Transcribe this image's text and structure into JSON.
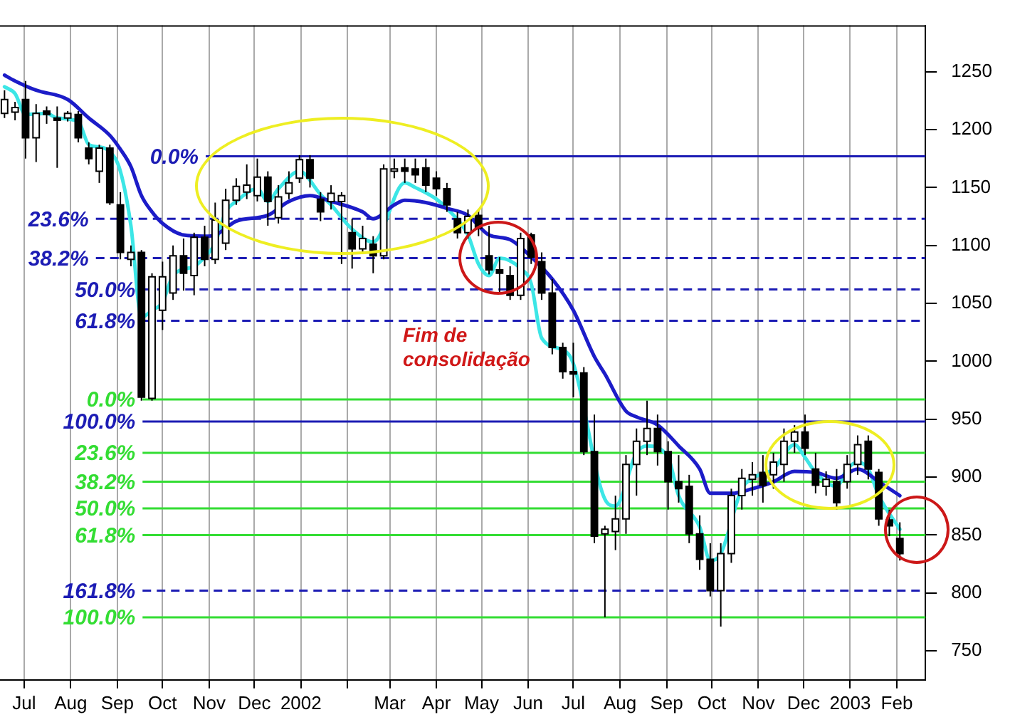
{
  "chart_data": {
    "type": "candlestick",
    "x": [
      "2001-06-18",
      "2001-06-25",
      "2001-07-02",
      "2001-07-09",
      "2001-07-16",
      "2001-07-23",
      "2001-07-30",
      "2001-08-06",
      "2001-08-13",
      "2001-08-20",
      "2001-08-27",
      "2001-09-03",
      "2001-09-10",
      "2001-09-17",
      "2001-09-24",
      "2001-10-01",
      "2001-10-08",
      "2001-10-15",
      "2001-10-22",
      "2001-10-29",
      "2001-11-05",
      "2001-11-12",
      "2001-11-19",
      "2001-11-26",
      "2001-12-03",
      "2001-12-10",
      "2001-12-17",
      "2001-12-24",
      "2001-12-31",
      "2002-01-07",
      "2002-01-14",
      "2002-01-21",
      "2002-01-28",
      "2002-02-04",
      "2002-02-11",
      "2002-02-18",
      "2002-02-25",
      "2002-03-04",
      "2002-03-11",
      "2002-03-18",
      "2002-03-25",
      "2002-04-01",
      "2002-04-08",
      "2002-04-15",
      "2002-04-22",
      "2002-04-29",
      "2002-05-06",
      "2002-05-13",
      "2002-05-20",
      "2002-05-27",
      "2002-06-03",
      "2002-06-10",
      "2002-06-17",
      "2002-06-24",
      "2002-07-01",
      "2002-07-08",
      "2002-07-15",
      "2002-07-22",
      "2002-07-29",
      "2002-08-05",
      "2002-08-12",
      "2002-08-19",
      "2002-08-26",
      "2002-09-02",
      "2002-09-09",
      "2002-09-16",
      "2002-09-23",
      "2002-09-30",
      "2002-10-07",
      "2002-10-14",
      "2002-10-21",
      "2002-10-28",
      "2002-11-04",
      "2002-11-11",
      "2002-11-18",
      "2002-11-25",
      "2002-12-02",
      "2002-12-09",
      "2002-12-16",
      "2002-12-23",
      "2002-12-30",
      "2003-01-06",
      "2003-01-13",
      "2003-01-20",
      "2003-01-27",
      "2003-02-03"
    ],
    "ohlc": [
      [
        1214,
        1234,
        1210,
        1226
      ],
      [
        1215,
        1224,
        1208,
        1219
      ],
      [
        1226,
        1242,
        1175,
        1193
      ],
      [
        1193,
        1222,
        1172,
        1214
      ],
      [
        1216,
        1220,
        1205,
        1213
      ],
      [
        1210,
        1220,
        1167,
        1208
      ],
      [
        1210,
        1216,
        1207,
        1214
      ],
      [
        1213,
        1216,
        1189,
        1193
      ],
      [
        1184,
        1189,
        1170,
        1175
      ],
      [
        1164,
        1187,
        1154,
        1184
      ],
      [
        1184,
        1187,
        1135,
        1137
      ],
      [
        1135,
        1146,
        1088,
        1094
      ],
      [
        1088,
        1100,
        1082,
        1094
      ],
      [
        1094,
        1096,
        966,
        969
      ],
      [
        968,
        1076,
        966,
        1073
      ],
      [
        1044,
        1086,
        1027,
        1073
      ],
      [
        1059,
        1100,
        1053,
        1091
      ],
      [
        1091,
        1106,
        1061,
        1076
      ],
      [
        1074,
        1111,
        1057,
        1107
      ],
      [
        1107,
        1117,
        1082,
        1088
      ],
      [
        1088,
        1137,
        1084,
        1122
      ],
      [
        1102,
        1149,
        1096,
        1139
      ],
      [
        1139,
        1158,
        1135,
        1151
      ],
      [
        1146,
        1170,
        1140,
        1152
      ],
      [
        1143,
        1175,
        1138,
        1159
      ],
      [
        1159,
        1164,
        1117,
        1138
      ],
      [
        1124,
        1152,
        1119,
        1142
      ],
      [
        1145,
        1164,
        1140,
        1154
      ],
      [
        1158,
        1178,
        1154,
        1174
      ],
      [
        1174,
        1178,
        1150,
        1158
      ],
      [
        1140,
        1146,
        1121,
        1129
      ],
      [
        1138,
        1152,
        1131,
        1145
      ],
      [
        1138,
        1146,
        1084,
        1143
      ],
      [
        1111,
        1123,
        1080,
        1097
      ],
      [
        1097,
        1117,
        1094,
        1106
      ],
      [
        1101,
        1108,
        1076,
        1091
      ],
      [
        1091,
        1170,
        1088,
        1166
      ],
      [
        1164,
        1175,
        1158,
        1166
      ],
      [
        1167,
        1175,
        1154,
        1164
      ],
      [
        1166,
        1175,
        1154,
        1161
      ],
      [
        1167,
        1175,
        1146,
        1152
      ],
      [
        1158,
        1164,
        1143,
        1149
      ],
      [
        1149,
        1154,
        1129,
        1135
      ],
      [
        1123,
        1129,
        1106,
        1111
      ],
      [
        1111,
        1131,
        1106,
        1125
      ],
      [
        1126,
        1131,
        1108,
        1115
      ],
      [
        1091,
        1117,
        1075,
        1079
      ],
      [
        1079,
        1090,
        1059,
        1076
      ],
      [
        1074,
        1082,
        1053,
        1057
      ],
      [
        1057,
        1111,
        1053,
        1106
      ],
      [
        1109,
        1111,
        1084,
        1090
      ],
      [
        1086,
        1094,
        1053,
        1059
      ],
      [
        1059,
        1071,
        1006,
        1012
      ],
      [
        1012,
        1016,
        985,
        991
      ],
      [
        991,
        1016,
        969,
        989
      ],
      [
        990,
        995,
        919,
        922
      ],
      [
        922,
        954,
        843,
        849
      ],
      [
        851,
        858,
        779,
        855
      ],
      [
        853,
        884,
        837,
        864
      ],
      [
        864,
        919,
        851,
        911
      ],
      [
        911,
        942,
        884,
        931
      ],
      [
        931,
        966,
        919,
        942
      ],
      [
        942,
        954,
        910,
        922
      ],
      [
        922,
        931,
        872,
        896
      ],
      [
        896,
        919,
        878,
        890
      ],
      [
        892,
        902,
        843,
        851
      ],
      [
        851,
        867,
        820,
        829
      ],
      [
        829,
        843,
        797,
        802
      ],
      [
        802,
        843,
        771,
        834
      ],
      [
        834,
        890,
        826,
        884
      ],
      [
        884,
        907,
        872,
        899
      ],
      [
        898,
        913,
        884,
        902
      ],
      [
        904,
        919,
        878,
        893
      ],
      [
        902,
        921,
        890,
        913
      ],
      [
        911,
        942,
        896,
        931
      ],
      [
        931,
        945,
        921,
        939
      ],
      [
        939,
        954,
        919,
        925
      ],
      [
        907,
        921,
        886,
        893
      ],
      [
        892,
        905,
        884,
        898
      ],
      [
        896,
        907,
        872,
        878
      ],
      [
        896,
        919,
        890,
        911
      ],
      [
        911,
        936,
        902,
        928
      ],
      [
        931,
        936,
        898,
        907
      ],
      [
        904,
        907,
        858,
        864
      ],
      [
        863,
        872,
        849,
        858
      ],
      [
        847,
        861,
        828,
        834
      ]
    ],
    "series": [
      {
        "type": "line",
        "color": "#1c1cc8",
        "x": [
          "2001-06-18",
          "2001-06-25",
          "2001-07-09",
          "2001-07-30",
          "2001-08-13",
          "2001-08-27",
          "2001-09-03",
          "2001-09-10",
          "2001-09-17",
          "2001-09-24",
          "2001-10-01",
          "2001-10-15",
          "2001-10-29",
          "2001-11-05",
          "2001-11-19",
          "2001-12-10",
          "2001-12-24",
          "2002-01-07",
          "2002-01-21",
          "2002-02-11",
          "2002-02-18",
          "2002-03-04",
          "2002-03-11",
          "2002-03-25",
          "2002-04-08",
          "2002-04-22",
          "2002-04-29",
          "2002-05-06",
          "2002-05-20",
          "2002-06-03",
          "2002-06-17",
          "2002-07-01",
          "2002-07-15",
          "2002-07-22",
          "2002-08-05",
          "2002-08-12",
          "2002-08-26",
          "2002-09-09",
          "2002-09-23",
          "2002-09-30",
          "2002-10-14",
          "2002-10-28",
          "2002-11-11",
          "2002-11-25",
          "2002-12-09",
          "2002-12-23",
          "2003-01-06",
          "2003-01-20",
          "2003-02-03"
        ],
        "values": [
          1247,
          1242,
          1234,
          1226,
          1210,
          1195,
          1183,
          1168,
          1143,
          1129,
          1119,
          1109,
          1108,
          1109,
          1121,
          1126,
          1138,
          1143,
          1138,
          1129,
          1123,
          1135,
          1139,
          1137,
          1132,
          1126,
          1117,
          1109,
          1105,
          1090,
          1071,
          1044,
          1004,
          989,
          957,
          952,
          945,
          927,
          907,
          886,
          886,
          890,
          896,
          905,
          904,
          899,
          907,
          896,
          884
        ]
      },
      {
        "type": "line",
        "color": "#3ce6e6",
        "x": [
          "2001-06-18",
          "2001-06-25",
          "2001-07-02",
          "2001-07-16",
          "2001-07-23",
          "2001-08-06",
          "2001-08-13",
          "2001-08-20",
          "2001-08-27",
          "2001-09-03",
          "2001-09-10",
          "2001-09-17",
          "2001-09-24",
          "2001-10-01",
          "2001-10-08",
          "2001-10-22",
          "2001-10-29",
          "2001-11-05",
          "2001-11-12",
          "2001-11-19",
          "2001-12-03",
          "2001-12-10",
          "2001-12-17",
          "2001-12-31",
          "2002-01-14",
          "2002-01-21",
          "2002-02-04",
          "2002-02-18",
          "2002-03-11",
          "2002-03-18",
          "2002-04-01",
          "2002-04-08",
          "2002-04-22",
          "2002-04-29",
          "2002-05-06",
          "2002-05-13",
          "2002-05-27",
          "2002-06-03",
          "2002-06-10",
          "2002-06-24",
          "2002-07-01",
          "2002-07-22",
          "2002-07-29",
          "2002-08-12",
          "2002-08-19",
          "2002-09-02",
          "2002-09-09",
          "2002-09-23",
          "2002-09-30",
          "2002-10-07",
          "2002-10-21",
          "2002-10-28",
          "2002-11-11",
          "2002-11-25",
          "2002-12-02",
          "2002-12-09",
          "2002-12-23",
          "2002-12-30",
          "2003-01-06",
          "2003-01-13",
          "2003-01-20",
          "2003-02-03"
        ],
        "values": [
          1237,
          1231,
          1213,
          1214,
          1210,
          1207,
          1187,
          1185,
          1181,
          1164,
          1117,
          1038,
          1044,
          1051,
          1074,
          1082,
          1090,
          1102,
          1129,
          1138,
          1149,
          1138,
          1149,
          1164,
          1144,
          1135,
          1114,
          1103,
          1154,
          1150,
          1140,
          1132,
          1109,
          1084,
          1074,
          1089,
          1080,
          1067,
          1020,
          1010,
          998,
          881,
          875,
          921,
          927,
          917,
          884,
          857,
          828,
          834,
          890,
          899,
          907,
          928,
          917,
          904,
          892,
          907,
          913,
          907,
          884,
          855
        ]
      }
    ],
    "xlim": [
      "2001-06-15",
      "2003-02-20"
    ],
    "xticks": [
      {
        "value": "2001-07-01",
        "label": "Jul"
      },
      {
        "value": "2001-08-01",
        "label": "Aug"
      },
      {
        "value": "2001-09-01",
        "label": "Sep"
      },
      {
        "value": "2001-10-01",
        "label": "Oct"
      },
      {
        "value": "2001-11-01",
        "label": "Nov"
      },
      {
        "value": "2001-12-01",
        "label": "Dec"
      },
      {
        "value": "2002-01-01",
        "label": "2002"
      },
      {
        "value": "2002-02-01",
        "label": null
      },
      {
        "value": "2002-03-01",
        "label": "Mar"
      },
      {
        "value": "2002-04-01",
        "label": "Apr"
      },
      {
        "value": "2002-05-01",
        "label": "May"
      },
      {
        "value": "2002-06-01",
        "label": "Jun"
      },
      {
        "value": "2002-07-01",
        "label": "Jul"
      },
      {
        "value": "2002-08-01",
        "label": "Aug"
      },
      {
        "value": "2002-09-01",
        "label": "Sep"
      },
      {
        "value": "2002-10-01",
        "label": "Oct"
      },
      {
        "value": "2002-11-01",
        "label": "Nov"
      },
      {
        "value": "2002-12-01",
        "label": "Dec"
      },
      {
        "value": "2003-01-01",
        "label": "2003"
      },
      {
        "value": "2003-02-01",
        "label": "Feb"
      }
    ],
    "ylim": [
      725,
      1290
    ],
    "yticks": [
      750,
      800,
      850,
      900,
      950,
      1000,
      1050,
      1100,
      1150,
      1200,
      1250
    ],
    "grid": "x",
    "legend": false,
    "marker": "none",
    "ref_lines": [
      {
        "axis": "y",
        "value": 1177,
        "color": "#1c1cb4",
        "line_style": "solid"
      },
      {
        "axis": "y",
        "value": 1123,
        "color": "#1c1cb4",
        "line_style": "dashed"
      },
      {
        "axis": "y",
        "value": 1089,
        "color": "#1c1cb4",
        "line_style": "dashed"
      },
      {
        "axis": "y",
        "value": 1062,
        "color": "#1c1cb4",
        "line_style": "dashed"
      },
      {
        "axis": "y",
        "value": 1035,
        "color": "#1c1cb4",
        "line_style": "dashed"
      },
      {
        "axis": "y",
        "value": 948,
        "color": "#1c1cb4",
        "line_style": "solid"
      },
      {
        "axis": "y",
        "value": 802,
        "color": "#1c1cb4",
        "line_style": "dashed"
      },
      {
        "axis": "y",
        "value": 967,
        "color": "#33dd33",
        "line_style": "solid"
      },
      {
        "axis": "y",
        "value": 921,
        "color": "#33dd33",
        "line_style": "solid"
      },
      {
        "axis": "y",
        "value": 896,
        "color": "#33dd33",
        "line_style": "solid"
      },
      {
        "axis": "y",
        "value": 873,
        "color": "#33dd33",
        "line_style": "solid"
      },
      {
        "axis": "y",
        "value": 850,
        "color": "#33dd33",
        "line_style": "solid"
      },
      {
        "axis": "y",
        "value": 779,
        "color": "#33dd33",
        "line_style": "solid"
      }
    ],
    "annotations": [
      "Fim de consolidação",
      {
        "text": "0.0%",
        "x": "2001-10-25",
        "y": 1177
      },
      {
        "text": "23.6%",
        "x": "2001-08-13",
        "y": 1123
      },
      {
        "text": "38.2%",
        "x": "2001-08-13",
        "y": 1089
      },
      {
        "text": "50.0%",
        "x": "2001-09-13",
        "y": 1062
      },
      {
        "text": "61.8%",
        "x": "2001-09-13",
        "y": 1035
      },
      {
        "text": "100.0%",
        "x": "2001-09-13",
        "y": 948
      },
      {
        "text": "161.8%",
        "x": "2001-09-13",
        "y": 802
      },
      {
        "text": "0.0%",
        "x": "2001-09-13",
        "y": 967
      },
      {
        "text": "23.6%",
        "x": "2001-09-13",
        "y": 921
      },
      {
        "text": "38.2%",
        "x": "2001-09-13",
        "y": 896
      },
      {
        "text": "50.0%",
        "x": "2001-09-13",
        "y": 873
      },
      {
        "text": "61.8%",
        "x": "2001-09-13",
        "y": 850
      },
      {
        "text": "100.0%",
        "x": "2001-09-13",
        "y": 779
      }
    ]
  }
}
